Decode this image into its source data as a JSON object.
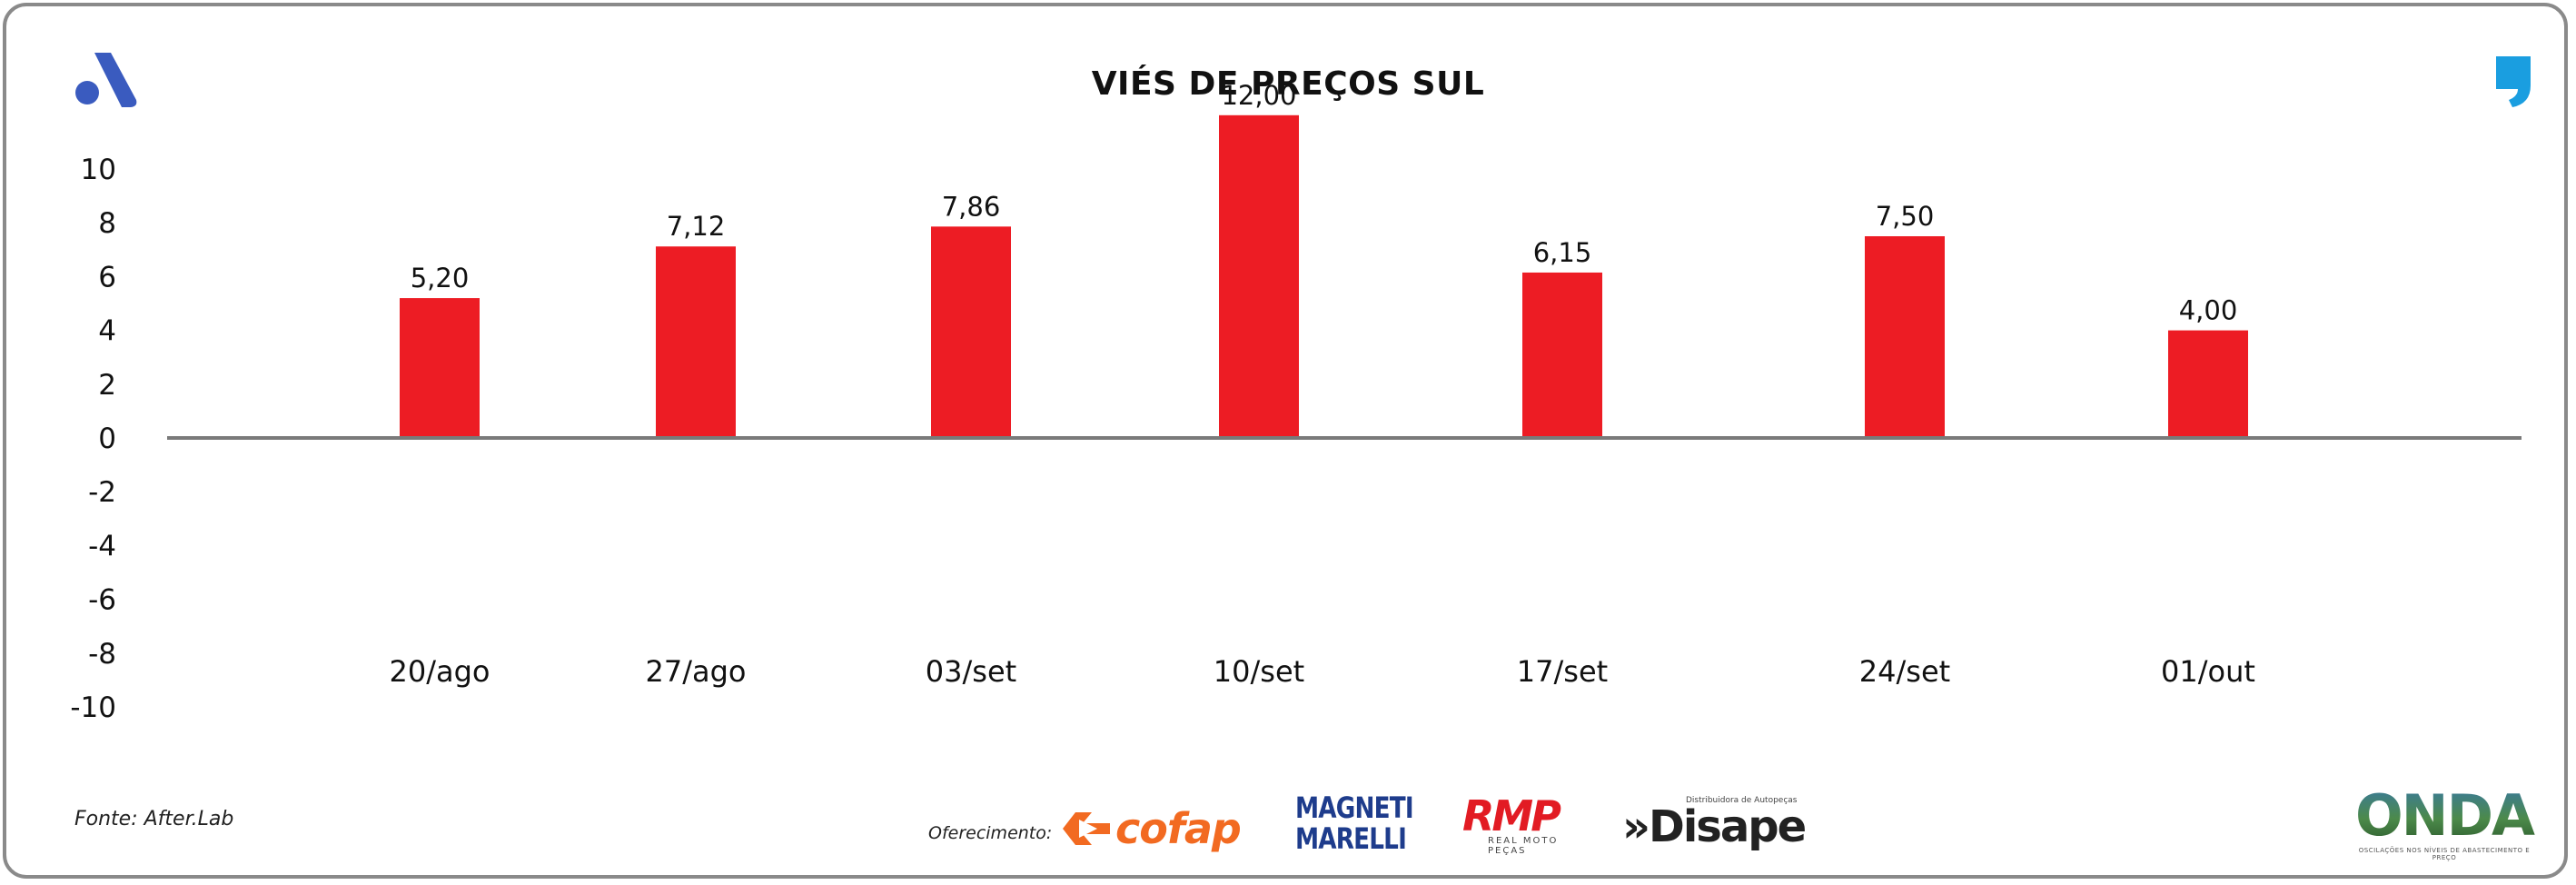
{
  "title": "VIÉS DE PREÇOS SUL",
  "source": "Fonte: After.Lab",
  "sponsor_label": "Oferecimento:",
  "sponsors": {
    "cofap": "cofap",
    "magneti_line1": "MAGNETI",
    "magneti_line2": "MARELLI",
    "rmp": "RMP",
    "rmp_sub": "REAL MOTO PEÇAS",
    "disape_sub": "Distribuidora de Autopeças",
    "disape": "»Disape",
    "onda": "ONDA",
    "onda_sub": "OSCILAÇÕES NOS NÍVEIS DE ABASTECIMENTO E PREÇO"
  },
  "colors": {
    "bar": "#ed1c24",
    "axis": "#7a7a7a",
    "brand_blue": "#3a5bbf",
    "quote_blue": "#1a9ee0"
  },
  "icons": {
    "brand_logo": "a-logo-icon",
    "quote": "quote-mark-icon"
  },
  "chart_data": {
    "type": "bar",
    "title": "VIÉS DE PREÇOS SUL",
    "categories": [
      "20/ago",
      "27/ago",
      "03/set",
      "10/set",
      "17/set",
      "24/set",
      "01/out"
    ],
    "values": [
      5.2,
      7.12,
      7.86,
      12.0,
      6.15,
      7.5,
      4.0
    ],
    "value_labels": [
      "5,20",
      "7,12",
      "7,86",
      "12,00",
      "6,15",
      "7,50",
      "4,00"
    ],
    "yticks": [
      "10",
      "8",
      "6",
      "4",
      "2",
      "0",
      "-2",
      "-4",
      "-6",
      "-8",
      "-10"
    ],
    "ylim": [
      -10,
      10
    ],
    "grid": false,
    "legend": "none"
  }
}
